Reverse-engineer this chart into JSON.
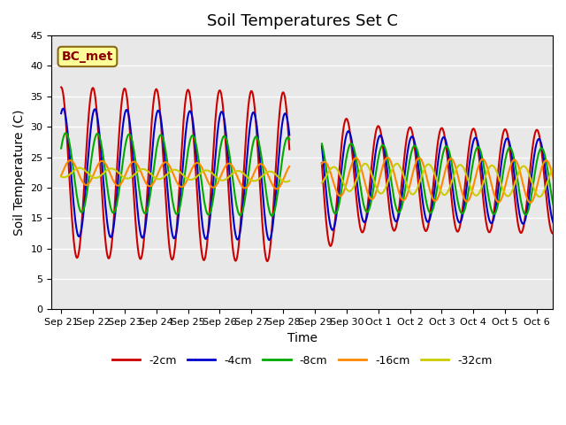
{
  "title": "Soil Temperatures Set C",
  "xlabel": "Time",
  "ylabel": "Soil Temperature (C)",
  "ylim": [
    0,
    45
  ],
  "x_tick_labels": [
    "Sep 21",
    "Sep 22",
    "Sep 23",
    "Sep 24",
    "Sep 25",
    "Sep 26",
    "Sep 27",
    "Sep 28",
    "Sep 29",
    "Sep 30",
    "Oct 1",
    "Oct 2",
    "Oct 3",
    "Oct 4",
    "Oct 5",
    "Oct 6"
  ],
  "annotation_text": "BC_met",
  "series_labels": [
    "-2cm",
    "-4cm",
    "-8cm",
    "-16cm",
    "-32cm"
  ],
  "series_colors": [
    "#cc0000",
    "#0000cc",
    "#00aa00",
    "#ff8800",
    "#cccc00"
  ],
  "line_width": 1.5,
  "bg_color": "#e8e8e8",
  "title_fontsize": 13,
  "label_fontsize": 10,
  "tick_fontsize": 8,
  "legend_fontsize": 9
}
